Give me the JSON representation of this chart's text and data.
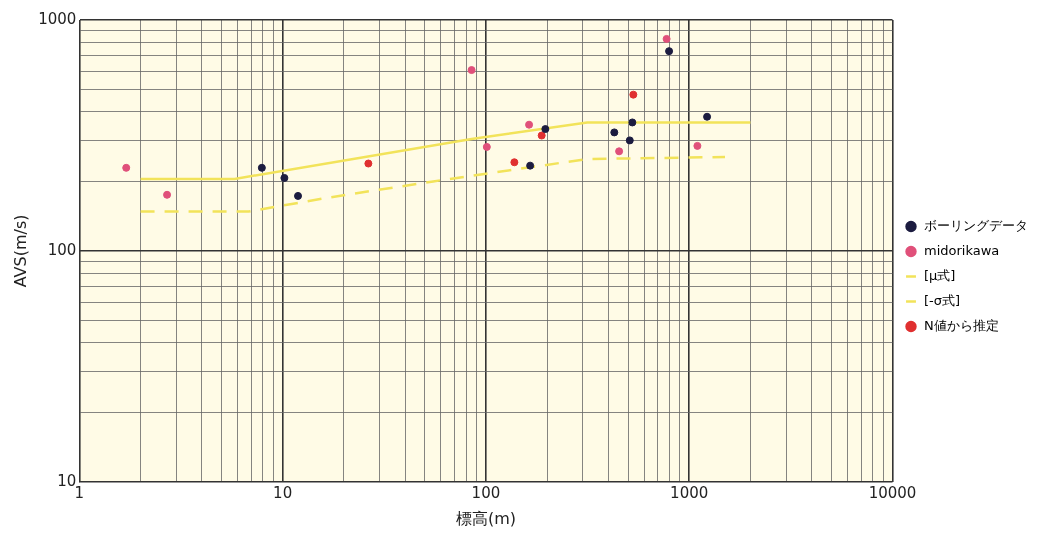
{
  "chart_data": {
    "type": "scatter",
    "xlabel": "標高(m)",
    "ylabel": "AVS(m/s)",
    "log": "xy",
    "grid": true,
    "legend": "right",
    "xlim": [
      1,
      10000
    ],
    "xticks": [
      1,
      10,
      100,
      1000,
      10000
    ],
    "ylim": [
      10,
      1000
    ],
    "yticks": [
      10,
      100,
      1000
    ],
    "series": [
      {
        "name": "ボーリングデータ",
        "marker": "circle",
        "color": "#1c1c40",
        "x": [
          7.9,
          10.2,
          11.9,
          165,
          196,
          428,
          510,
          525,
          796,
          1224
        ],
        "values": [
          229,
          207,
          173,
          234,
          337,
          326,
          301,
          360,
          733,
          381
        ]
      },
      {
        "name": "midorikawa",
        "marker": "circle",
        "color": "#e0507a",
        "x": [
          1.7,
          2.7,
          85,
          101,
          163,
          452,
          774,
          1097
        ],
        "values": [
          229,
          175,
          607,
          282,
          352,
          270,
          828,
          285
        ]
      },
      {
        "name": "[μ式]",
        "type": "line",
        "marker": "none",
        "line_style": "solid",
        "color": "#f2e35a",
        "x": [
          2,
          5.8,
          85,
          315,
          2000
        ],
        "values": [
          205,
          205,
          305,
          360,
          360
        ]
      },
      {
        "name": "[-σ式]",
        "type": "line",
        "marker": "none",
        "line_style": "dashed",
        "color": "#f2e35a",
        "x": [
          2,
          6.8,
          16,
          55,
          100,
          315,
          1500
        ],
        "values": [
          148,
          148,
          169,
          200,
          216,
          250,
          255
        ]
      },
      {
        "name": "N値から推定",
        "marker": "circle",
        "color": "#e03030",
        "x": [
          26.4,
          138,
          188,
          531
        ],
        "values": [
          239,
          242,
          316,
          475
        ]
      }
    ]
  }
}
